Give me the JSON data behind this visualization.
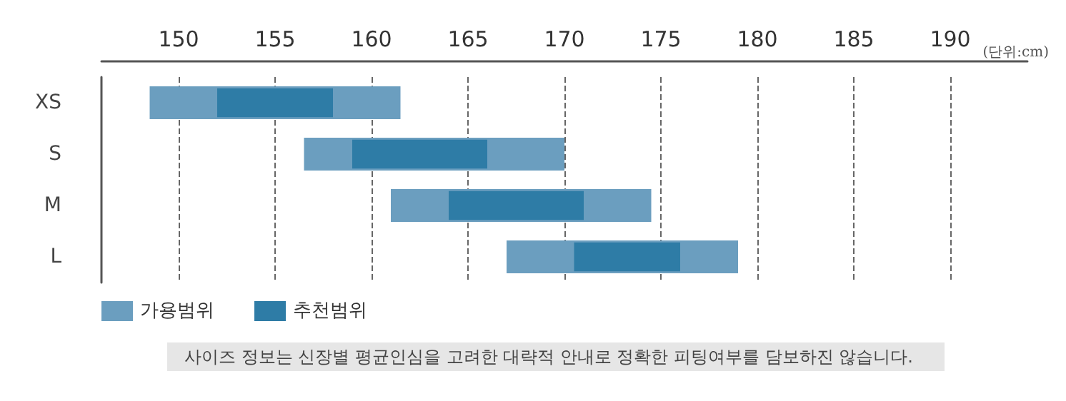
{
  "chart_data": {
    "type": "bar",
    "orientation": "horizontal",
    "categories": [
      "XS",
      "S",
      "M",
      "L"
    ],
    "series": [
      {
        "name": "가용범위",
        "color": "#6b9ebf",
        "base": [
          148.5,
          156.5,
          161,
          167
        ],
        "values": [
          13,
          13.5,
          13.5,
          12
        ]
      },
      {
        "name": "추천범위",
        "color": "#2e7ca6",
        "base": [
          152,
          159,
          164,
          170.5
        ],
        "values": [
          6,
          7,
          7,
          5.5
        ]
      }
    ],
    "xlim": [
      146,
      194
    ],
    "xticks": [
      150,
      155,
      160,
      165,
      170,
      175,
      180,
      185,
      190
    ],
    "grid": "x",
    "legend": "bottom left",
    "annotations": [
      "(단위:cm)",
      "사이즈 정보는 신장별 평균인심을 고려한 대략적 안내로 정확한 피팅여부를 담보하진 않습니다."
    ]
  }
}
